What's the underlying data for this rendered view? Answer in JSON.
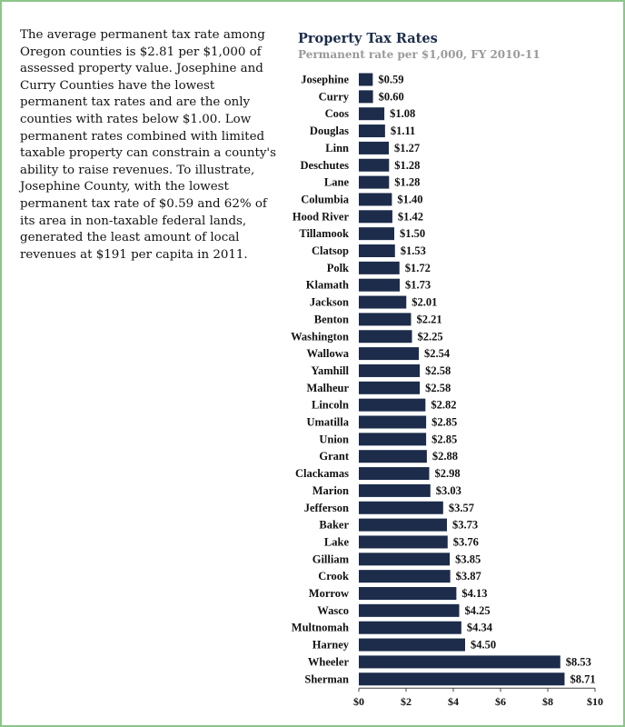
{
  "intro_text": "The average permanent tax rate among Oregon counties is $2.81 per $1,000 of assessed property value. Josephine and Curry Counties have the lowest permanent tax rates and are the only counties with rates below $1.00. Low permanent rates combined with limited taxable property can constrain a county's ability to raise revenues. To illustrate, Josephine County, with the lowest permanent tax rate of $0.59 and 62% of its area in non-taxable federal lands, generated the least amount of local revenues at $191 per capita in 2011.",
  "colors": {
    "bar": "#1c2c4a",
    "frame": "#8cc68a",
    "subtitle": "#9a9a9a"
  },
  "chart_data": {
    "type": "bar",
    "orientation": "horizontal",
    "title": "Property Tax Rates",
    "subtitle": "Permanent rate per $1,000, FY 2010-11",
    "xlabel": "",
    "ylabel": "",
    "xlim": [
      0,
      10
    ],
    "xticks": [
      0,
      2,
      4,
      6,
      8,
      10
    ],
    "xtick_labels": [
      "$0",
      "$2",
      "$4",
      "$6",
      "$8",
      "$10"
    ],
    "grid": false,
    "categories": [
      "Josephine",
      "Curry",
      "Coos",
      "Douglas",
      "Linn",
      "Deschutes",
      "Lane",
      "Columbia",
      "Hood River",
      "Tillamook",
      "Clatsop",
      "Polk",
      "Klamath",
      "Jackson",
      "Benton",
      "Washington",
      "Wallowa",
      "Yamhill",
      "Malheur",
      "Lincoln",
      "Umatilla",
      "Union",
      "Grant",
      "Clackamas",
      "Marion",
      "Jefferson",
      "Baker",
      "Lake",
      "Gilliam",
      "Crook",
      "Morrow",
      "Wasco",
      "Multnomah",
      "Harney",
      "Wheeler",
      "Sherman"
    ],
    "values": [
      0.59,
      0.6,
      1.08,
      1.11,
      1.27,
      1.28,
      1.28,
      1.4,
      1.42,
      1.5,
      1.53,
      1.72,
      1.73,
      2.01,
      2.21,
      2.25,
      2.54,
      2.58,
      2.58,
      2.82,
      2.85,
      2.85,
      2.88,
      2.98,
      3.03,
      3.57,
      3.73,
      3.76,
      3.85,
      3.87,
      4.13,
      4.25,
      4.34,
      4.5,
      8.53,
      8.71
    ],
    "value_labels": [
      "$0.59",
      "$0.60",
      "$1.08",
      "$1.11",
      "$1.27",
      "$1.28",
      "$1.28",
      "$1.40",
      "$1.42",
      "$1.50",
      "$1.53",
      "$1.72",
      "$1.73",
      "$2.01",
      "$2.21",
      "$2.25",
      "$2.54",
      "$2.58",
      "$2.58",
      "$2.82",
      "$2.85",
      "$2.85",
      "$2.88",
      "$2.98",
      "$3.03",
      "$3.57",
      "$3.73",
      "$3.76",
      "$3.85",
      "$3.87",
      "$4.13",
      "$4.25",
      "$4.34",
      "$4.50",
      "$8.53",
      "$8.71"
    ]
  }
}
